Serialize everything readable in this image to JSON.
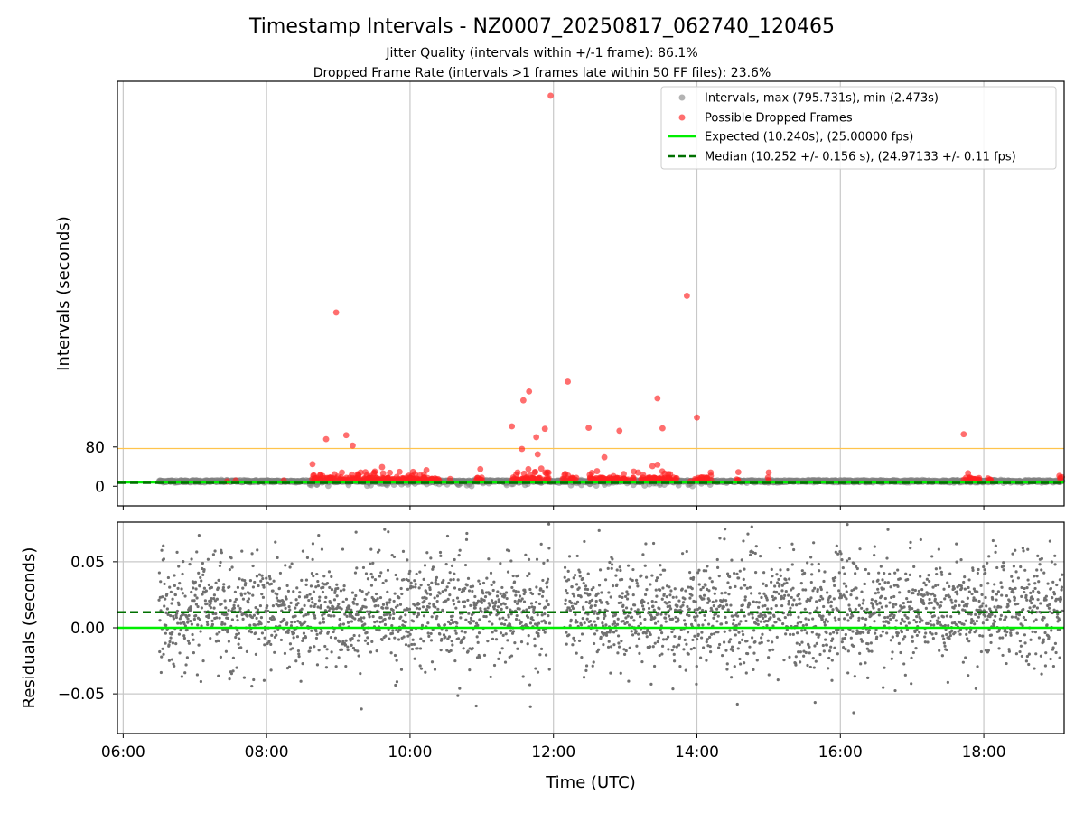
{
  "title": "Timestamp Intervals - NZ0007_20250817_062740_120465",
  "subtitle_1": "Jitter Quality (intervals within +/-1 frame): 86.1%",
  "subtitle_2": "Dropped Frame Rate (intervals >1 frames late within 50 FF files): 23.6%",
  "colors": {
    "intervals": "#808080",
    "dropped": "#ff2020",
    "expected": "#00ee00",
    "median": "#007000",
    "threshold": "#ffc44d",
    "grid": "#c8c8c8"
  },
  "chart_data": [
    {
      "type": "scatter",
      "ylabel": "Intervals (seconds)",
      "y_ticks": [
        "0",
        "80"
      ],
      "y_tick_values": [
        0,
        80
      ],
      "xlim": [
        5.92,
        19.12
      ],
      "ylim": [
        -40,
        825
      ],
      "grid": "x",
      "legend_position": "upper right",
      "legend": [
        "Intervals, max (795.731s), min (2.473s)",
        "Possible Dropped Frames",
        "Expected (10.240s), (25.00000 fps)",
        "Median (10.252 +/- 0.156 s), (24.97133 +/- 0.11 fps)"
      ],
      "threshold_line_y": 80,
      "expected_y": 10.24,
      "median_y": 10.252,
      "intervals_range": {
        "x_start": 6.5,
        "x_end": 19.1,
        "typical_y": 10.25
      },
      "dropped_frames": [
        [
          11.96,
          795.7
        ],
        [
          8.97,
          354
        ],
        [
          13.86,
          388
        ],
        [
          12.2,
          213
        ],
        [
          11.66,
          193
        ],
        [
          11.58,
          175
        ],
        [
          13.45,
          179
        ],
        [
          14.0,
          140
        ],
        [
          11.42,
          122
        ],
        [
          11.88,
          117
        ],
        [
          12.49,
          119
        ],
        [
          12.92,
          113
        ],
        [
          13.52,
          118
        ],
        [
          11.76,
          100
        ],
        [
          17.72,
          106
        ],
        [
          8.83,
          96
        ],
        [
          9.11,
          104
        ],
        [
          9.2,
          83
        ],
        [
          11.78,
          65
        ],
        [
          12.71,
          59
        ],
        [
          11.56,
          76
        ],
        [
          8.64,
          45
        ],
        [
          9.61,
          39
        ],
        [
          13.38,
          41
        ],
        [
          13.45,
          44
        ],
        [
          10.98,
          35
        ],
        [
          11.5,
          28
        ],
        [
          11.65,
          35
        ],
        [
          11.83,
          36
        ],
        [
          11.74,
          29
        ],
        [
          13.6,
          25
        ],
        [
          13.12,
          30
        ],
        [
          13.18,
          28
        ],
        [
          9.05,
          28
        ],
        [
          9.19,
          24
        ],
        [
          9.28,
          22
        ],
        [
          10.07,
          25
        ],
        [
          10.14,
          22
        ],
        [
          12.98,
          25
        ],
        [
          13.55,
          26
        ],
        [
          14.06,
          18
        ],
        [
          10.56,
          15
        ],
        [
          7.45,
          10
        ],
        [
          7.57,
          12
        ],
        [
          8.24,
          12
        ],
        [
          13.22,
          14
        ],
        [
          13.91,
          10
        ]
      ],
      "dropped_band": [
        [
          8.62,
          10.1
        ],
        [
          10.0,
          10.42
        ],
        [
          10.92,
          11.02
        ],
        [
          11.42,
          11.95
        ],
        [
          12.12,
          12.32
        ],
        [
          12.5,
          13.72
        ],
        [
          13.96,
          14.2
        ],
        [
          17.72,
          17.94
        ],
        [
          14.55,
          14.6
        ],
        [
          14.98,
          15.02
        ],
        [
          18.05,
          18.1
        ],
        [
          19.05,
          19.1
        ]
      ]
    },
    {
      "type": "scatter",
      "ylabel": "Residuals (seconds)",
      "xlabel": "Time (UTC)",
      "x_ticks": [
        "06:00",
        "08:00",
        "10:00",
        "12:00",
        "14:00",
        "16:00",
        "18:00"
      ],
      "x_tick_values": [
        6,
        8,
        10,
        12,
        14,
        16,
        18
      ],
      "y_ticks": [
        "0.05",
        "0.00",
        "−0.05"
      ],
      "y_tick_values": [
        0.05,
        0.0,
        -0.05
      ],
      "xlim": [
        5.92,
        19.12
      ],
      "ylim": [
        -0.08,
        0.08
      ],
      "grid": "both",
      "expected_residual": 0.0,
      "median_residual": 0.012,
      "residual_spread": {
        "x_start": 6.5,
        "x_end": 19.1,
        "center": 0.012,
        "std": 0.028,
        "data_gap": [
          11.95,
          12.15
        ]
      }
    }
  ]
}
